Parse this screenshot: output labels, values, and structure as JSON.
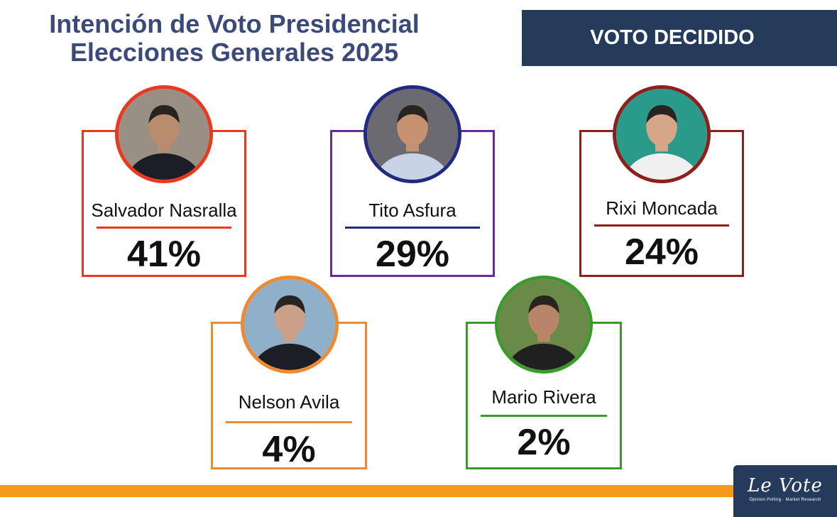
{
  "header": {
    "title_line1": "Intención de Voto Presidencial",
    "title_line2": "Elecciones Generales 2025",
    "banner": "VOTO DECIDIDO"
  },
  "chart_data": {
    "type": "bar",
    "title": "Intención de Voto Presidencial Elecciones Generales 2025",
    "subtitle": "VOTO DECIDIDO",
    "categories": [
      "Salvador Nasralla",
      "Tito Asfura",
      "Rixi Moncada",
      "Nelson Avila",
      "Mario Rivera"
    ],
    "values": [
      41,
      29,
      24,
      4,
      2
    ],
    "value_labels": [
      "41%",
      "29%",
      "24%",
      "4%",
      "2%"
    ],
    "unit": "%",
    "colors": [
      "#e8391f",
      "#6a2a9e",
      "#8e1f1a",
      "#ef8a30",
      "#3a9a2a"
    ],
    "rule_colors": [
      "#e8391f",
      "#1f2a80",
      "#8e1f1a",
      "#ef8a30",
      "#3a9a2a"
    ]
  },
  "logo": {
    "brand": "Le Vote",
    "tagline": "Opinion Polling · Market Research"
  },
  "colors": {
    "title": "#3c4a79",
    "banner_bg": "#243b5c",
    "stripe": "#f59a1c"
  }
}
